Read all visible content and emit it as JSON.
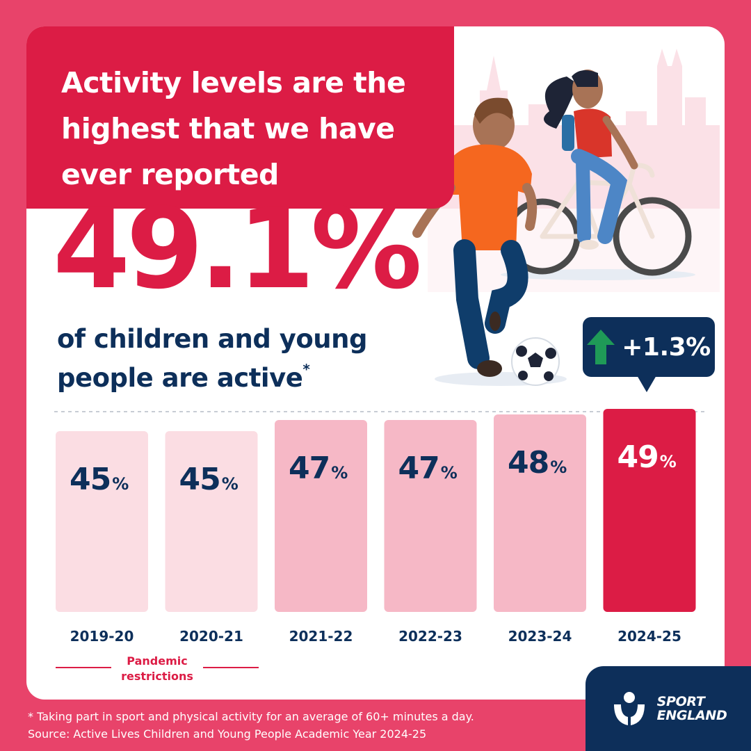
{
  "header": {
    "title": "Activity levels are the highest that we have ever reported"
  },
  "headline": {
    "value": "49.1%",
    "description": "of children and young people are active",
    "footnote_marker": "*"
  },
  "change_badge": {
    "text": "+1.3%",
    "icon": "up-arrow-icon",
    "arrow_color": "#1f9a57"
  },
  "chart_data": {
    "type": "bar",
    "categories": [
      "2019-20",
      "2020-21",
      "2021-22",
      "2022-23",
      "2023-24",
      "2024-25"
    ],
    "values": [
      45,
      45,
      47,
      47,
      48,
      49
    ],
    "value_labels": [
      "45",
      "45",
      "47",
      "47",
      "48",
      "49"
    ],
    "unit": "%",
    "title": "",
    "xlabel": "",
    "ylabel": "",
    "colors": [
      "#fbdde3",
      "#fbdde3",
      "#f6b8c6",
      "#f6b8c6",
      "#f6b8c6",
      "#dc1c45"
    ],
    "highlight_category": "2024-25"
  },
  "annotation": {
    "pandemic_label": "Pandemic restrictions"
  },
  "footer": {
    "footnote": "*  Taking part in sport and physical activity for an average of 60+ minutes a day.",
    "source": "Source: Active Lives Children and Young People Academic Year 2024-25"
  },
  "brand": {
    "line1": "SPORT",
    "line2": "ENGLAND",
    "icon": "sport-england-logo-icon"
  },
  "colors": {
    "background": "#e8436a",
    "accent_red": "#dc1c45",
    "navy": "#0d2f5a"
  }
}
